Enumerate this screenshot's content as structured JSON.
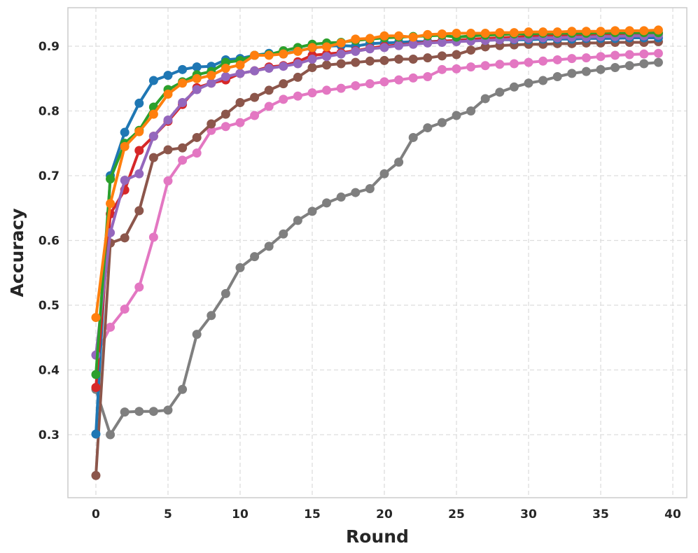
{
  "chart_data": {
    "type": "line",
    "title": "",
    "xlabel": "Round",
    "ylabel": "Accuracy",
    "xlim": [
      -1.94,
      40.97
    ],
    "ylim": [
      0.2027,
      0.9595
    ],
    "grid": true,
    "legend": "none",
    "xticks": [
      0,
      5,
      10,
      15,
      20,
      25,
      30,
      35,
      40
    ],
    "xtick_labels": [
      "0",
      "5",
      "10",
      "15",
      "20",
      "25",
      "30",
      "35",
      "40"
    ],
    "yticks": [
      0.3,
      0.4,
      0.5,
      0.6,
      0.7,
      0.8,
      0.9
    ],
    "ytick_labels": [
      "0.3",
      "0.4",
      "0.5",
      "0.6",
      "0.7",
      "0.8",
      "0.9"
    ],
    "x": [
      0,
      1,
      2,
      3,
      4,
      5,
      6,
      7,
      8,
      9,
      10,
      11,
      12,
      13,
      14,
      15,
      16,
      17,
      18,
      19,
      20,
      21,
      22,
      23,
      24,
      25,
      26,
      27,
      28,
      29,
      30,
      31,
      32,
      33,
      34,
      35,
      36,
      37,
      38,
      39
    ],
    "series": [
      {
        "name": "gray",
        "color": "#7f7f7f",
        "values": [
          0.37,
          0.3,
          0.335,
          0.336,
          0.336,
          0.338,
          0.37,
          0.455,
          0.484,
          0.518,
          0.558,
          0.575,
          0.591,
          0.61,
          0.631,
          0.645,
          0.658,
          0.667,
          0.674,
          0.68,
          0.703,
          0.721,
          0.759,
          0.774,
          0.782,
          0.793,
          0.8,
          0.819,
          0.829,
          0.837,
          0.843,
          0.847,
          0.853,
          0.858,
          0.861,
          0.864,
          0.867,
          0.87,
          0.873,
          0.875
        ]
      },
      {
        "name": "pink",
        "color": "#e377c2",
        "values": [
          0.423,
          0.466,
          0.494,
          0.528,
          0.605,
          0.692,
          0.724,
          0.735,
          0.77,
          0.776,
          0.782,
          0.793,
          0.807,
          0.818,
          0.823,
          0.828,
          0.832,
          0.835,
          0.839,
          0.842,
          0.845,
          0.848,
          0.851,
          0.853,
          0.864,
          0.865,
          0.868,
          0.87,
          0.872,
          0.873,
          0.875,
          0.877,
          0.879,
          0.881,
          0.882,
          0.884,
          0.886,
          0.887,
          0.888,
          0.889
        ]
      },
      {
        "name": "brown",
        "color": "#8c564b",
        "values": [
          0.237,
          0.596,
          0.604,
          0.646,
          0.728,
          0.74,
          0.743,
          0.759,
          0.78,
          0.795,
          0.813,
          0.821,
          0.832,
          0.842,
          0.852,
          0.867,
          0.871,
          0.873,
          0.875,
          0.877,
          0.878,
          0.88,
          0.88,
          0.882,
          0.885,
          0.887,
          0.894,
          0.899,
          0.901,
          0.902,
          0.903,
          0.903,
          0.904,
          0.904,
          0.905,
          0.905,
          0.906,
          0.906,
          0.906,
          0.907
        ]
      },
      {
        "name": "blue",
        "color": "#1f77b4",
        "values": [
          0.301,
          0.7,
          0.767,
          0.812,
          0.847,
          0.855,
          0.864,
          0.868,
          0.869,
          0.879,
          0.881,
          0.886,
          0.889,
          0.888,
          0.893,
          0.897,
          0.9,
          0.901,
          0.9,
          0.904,
          0.905,
          0.906,
          0.907,
          0.907,
          0.908,
          0.908,
          0.909,
          0.909,
          0.91,
          0.91,
          0.91,
          0.911,
          0.911,
          0.911,
          0.912,
          0.912,
          0.912,
          0.913,
          0.913,
          0.913
        ]
      },
      {
        "name": "red",
        "color": "#d62728",
        "values": [
          0.373,
          0.641,
          0.678,
          0.739,
          0.761,
          0.784,
          0.81,
          0.836,
          0.843,
          0.848,
          0.858,
          0.862,
          0.868,
          0.87,
          0.876,
          0.886,
          0.888,
          0.89,
          0.893,
          0.897,
          0.9,
          0.902,
          0.904,
          0.906,
          0.908,
          0.909,
          0.911,
          0.912,
          0.913,
          0.914,
          0.915,
          0.916,
          0.916,
          0.917,
          0.917,
          0.918,
          0.918,
          0.919,
          0.919,
          0.92
        ]
      },
      {
        "name": "purple",
        "color": "#9467bd",
        "values": [
          0.423,
          0.612,
          0.693,
          0.703,
          0.761,
          0.786,
          0.813,
          0.833,
          0.843,
          0.853,
          0.858,
          0.862,
          0.866,
          0.869,
          0.873,
          0.88,
          0.884,
          0.888,
          0.892,
          0.896,
          0.898,
          0.901,
          0.903,
          0.905,
          0.906,
          0.907,
          0.908,
          0.909,
          0.91,
          0.911,
          0.912,
          0.913,
          0.913,
          0.914,
          0.914,
          0.915,
          0.915,
          0.916,
          0.916,
          0.917
        ]
      },
      {
        "name": "green",
        "color": "#2ca02c",
        "values": [
          0.393,
          0.695,
          0.75,
          0.77,
          0.806,
          0.833,
          0.845,
          0.856,
          0.861,
          0.875,
          0.878,
          0.886,
          0.887,
          0.893,
          0.898,
          0.903,
          0.905,
          0.906,
          0.909,
          0.911,
          0.913,
          0.914,
          0.915,
          0.916,
          0.917,
          0.914,
          0.916,
          0.917,
          0.918,
          0.919,
          0.919,
          0.92,
          0.92,
          0.92,
          0.92,
          0.921,
          0.921,
          0.921,
          0.921,
          0.921
        ]
      },
      {
        "name": "orange",
        "color": "#ff7f0e",
        "values": [
          0.481,
          0.657,
          0.745,
          0.768,
          0.795,
          0.826,
          0.843,
          0.85,
          0.855,
          0.866,
          0.871,
          0.886,
          0.886,
          0.888,
          0.892,
          0.898,
          0.899,
          0.905,
          0.911,
          0.912,
          0.916,
          0.916,
          0.914,
          0.918,
          0.919,
          0.92,
          0.92,
          0.92,
          0.921,
          0.921,
          0.922,
          0.922,
          0.922,
          0.923,
          0.923,
          0.923,
          0.924,
          0.924,
          0.924,
          0.925
        ]
      }
    ]
  }
}
